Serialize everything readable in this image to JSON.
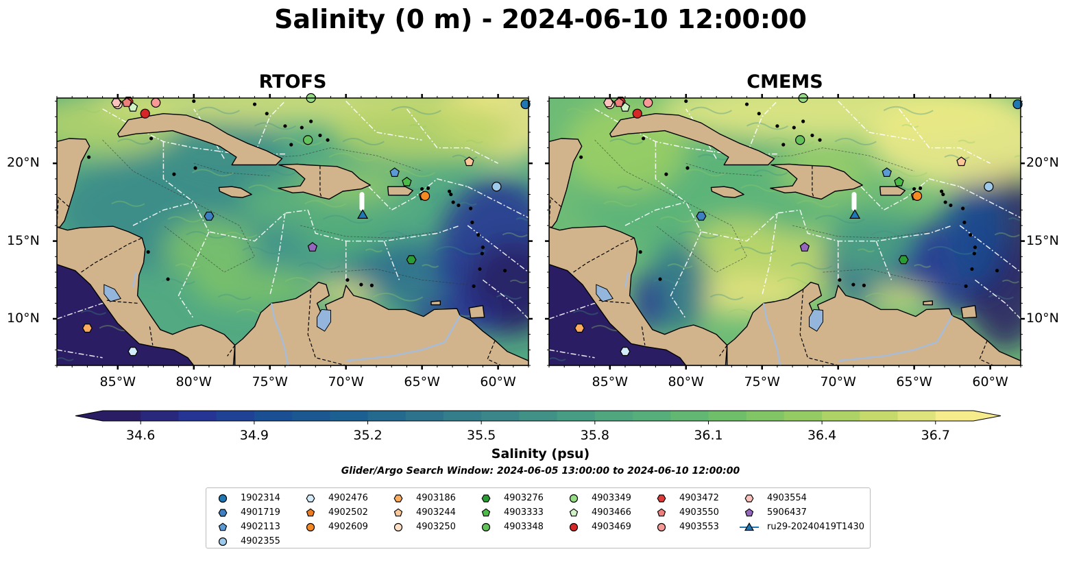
{
  "title": "Salinity (0 m) - 2024-06-10 12:00:00",
  "panels": [
    {
      "id": "rtofs",
      "title": "RTOFS"
    },
    {
      "id": "cmems",
      "title": "CMEMS"
    }
  ],
  "map_extent": {
    "lon_min": -89,
    "lon_max": -58,
    "lat_min": 7,
    "lat_max": 24.2
  },
  "lon_ticks": [
    {
      "value": -85,
      "label": "85°W"
    },
    {
      "value": -80,
      "label": "80°W"
    },
    {
      "value": -75,
      "label": "75°W"
    },
    {
      "value": -70,
      "label": "70°W"
    },
    {
      "value": -65,
      "label": "65°W"
    },
    {
      "value": -60,
      "label": "60°W"
    }
  ],
  "lat_ticks": [
    {
      "value": 20,
      "label": "20°N"
    },
    {
      "value": 15,
      "label": "15°N"
    },
    {
      "value": 10,
      "label": "10°N"
    }
  ],
  "colorbar": {
    "label": "Salinity (psu)",
    "min": 34.5,
    "max": 36.8,
    "extend": "both",
    "colormap": "haline",
    "stops": [
      "#2a1d63",
      "#263494",
      "#1a4f93",
      "#1b6090",
      "#2d738b",
      "#3a8688",
      "#479c84",
      "#56af7a",
      "#6fbe6a",
      "#94cc63",
      "#c5da6a",
      "#f6ec8b"
    ],
    "ticks": [
      {
        "value": 34.6,
        "label": "34.6"
      },
      {
        "value": 34.9,
        "label": "34.9"
      },
      {
        "value": 35.2,
        "label": "35.2"
      },
      {
        "value": 35.5,
        "label": "35.5"
      },
      {
        "value": 35.8,
        "label": "35.8"
      },
      {
        "value": 36.1,
        "label": "36.1"
      },
      {
        "value": 36.4,
        "label": "36.4"
      },
      {
        "value": 36.7,
        "label": "36.7"
      }
    ]
  },
  "search_window": "Glider/Argo Search Window: 2024-06-05 13:00:00 to 2024-06-10 12:00:00",
  "colors": {
    "land": "#d2b48c",
    "lake": "#94b6dd",
    "river": "#a7bcd9"
  },
  "floats": [
    {
      "id": "1902314",
      "marker": "circle",
      "color": "#1f77b4",
      "lon": -58.2,
      "lat": 23.8
    },
    {
      "id": "4901719",
      "marker": "hexagon",
      "color": "#3d7fc0",
      "lon": -79.0,
      "lat": 16.6
    },
    {
      "id": "4902113",
      "marker": "pentagon",
      "color": "#5b9bd5",
      "lon": -66.8,
      "lat": 19.4
    },
    {
      "id": "4902355",
      "marker": "circle",
      "color": "#9ec9ea",
      "lon": -60.1,
      "lat": 18.5
    },
    {
      "id": "4902476",
      "marker": "hexagon",
      "color": "#d4ecf9",
      "lon": -84.0,
      "lat": 7.9
    },
    {
      "id": "4902502",
      "marker": "pentagon",
      "color": "#ee7c1f",
      "lon": -64.9,
      "lat": 17.9
    },
    {
      "id": "4902609",
      "marker": "circle",
      "color": "#f58a24",
      "lon": -64.8,
      "lat": 17.9
    },
    {
      "id": "4903186",
      "marker": "hexagon",
      "color": "#fbac5e",
      "lon": -87.0,
      "lat": 9.4
    },
    {
      "id": "4903244",
      "marker": "pentagon",
      "color": "#fcc89a",
      "lon": -61.9,
      "lat": 20.1
    },
    {
      "id": "4903250",
      "marker": "circle",
      "color": "#fde0c6",
      "lon": -85.0,
      "lat": 23.8
    },
    {
      "id": "4903276",
      "marker": "hexagon",
      "color": "#2a9c36",
      "lon": -65.7,
      "lat": 13.8
    },
    {
      "id": "4903333",
      "marker": "pentagon",
      "color": "#4cbc48",
      "lon": -66.0,
      "lat": 18.8
    },
    {
      "id": "4903348",
      "marker": "circle",
      "color": "#63c35a",
      "lon": -72.5,
      "lat": 21.5
    },
    {
      "id": "4903349",
      "marker": "circle",
      "color": "#96dd86",
      "lon": -72.3,
      "lat": 24.2
    },
    {
      "id": "4903466",
      "marker": "pentagon",
      "color": "#cff3c6",
      "lon": -84.0,
      "lat": 23.6
    },
    {
      "id": "4903469",
      "marker": "circle",
      "color": "#d62728",
      "lon": -83.2,
      "lat": 23.2
    },
    {
      "id": "4903472",
      "marker": "hexagon",
      "color": "#de3a3a",
      "lon": -84.3,
      "lat": 24.0
    },
    {
      "id": "4903550",
      "marker": "pentagon",
      "color": "#ef7f7c",
      "lon": -84.4,
      "lat": 23.9
    },
    {
      "id": "4903553",
      "marker": "circle",
      "color": "#f59a96",
      "lon": -82.5,
      "lat": 23.9
    },
    {
      "id": "4903554",
      "marker": "hexagon",
      "color": "#f9c2bd",
      "lon": -85.1,
      "lat": 23.9
    },
    {
      "id": "5906437",
      "marker": "pentagon",
      "color": "#9467bd",
      "lon": -72.2,
      "lat": 14.6
    },
    {
      "id": "ru29-20240419T1430",
      "marker": "triangle",
      "color": "#1f77b4",
      "lon": -68.9,
      "lat": 16.7,
      "line": true
    }
  ]
}
